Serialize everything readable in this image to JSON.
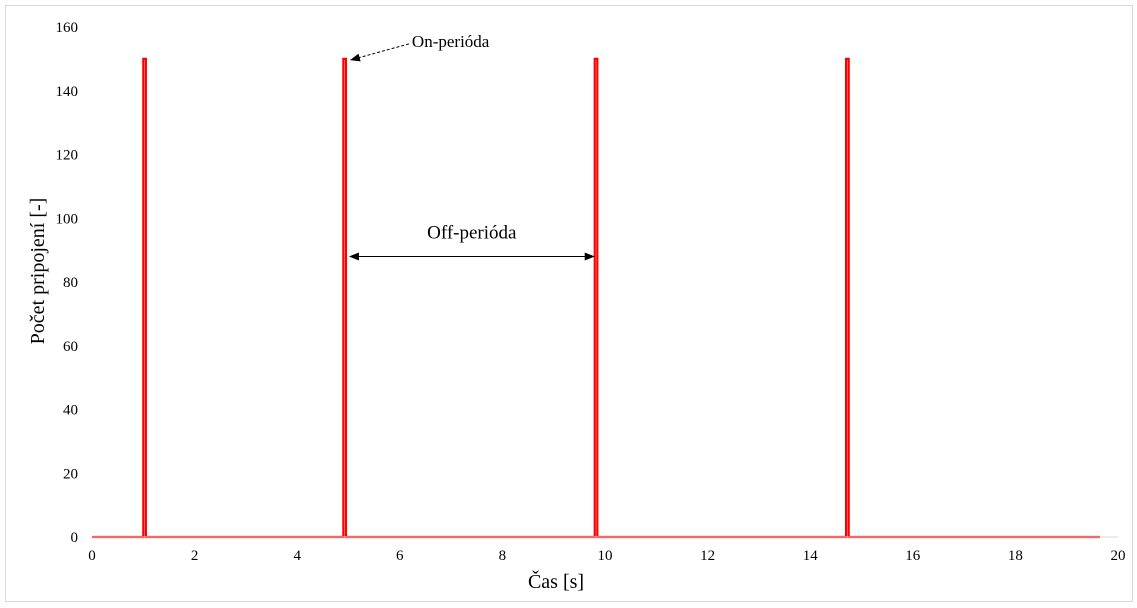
{
  "chart_data": {
    "type": "line",
    "title": "",
    "xlabel": "Čas [s]",
    "ylabel": "Počet pripojení [-]",
    "xlim": [
      0,
      20
    ],
    "ylim": [
      0,
      160
    ],
    "xticks": [
      0,
      2,
      4,
      6,
      8,
      10,
      12,
      14,
      16,
      18,
      20
    ],
    "yticks": [
      0,
      20,
      40,
      60,
      80,
      100,
      120,
      140,
      160
    ],
    "grid": false,
    "legend": "none",
    "line_color": "#ff0000",
    "series": [
      {
        "x": [
          0,
          1.0,
          1.0,
          1.05,
          1.05,
          4.9,
          4.9,
          4.95,
          4.95,
          9.8,
          9.8,
          9.85,
          9.85,
          14.7,
          14.7,
          14.75,
          14.75,
          19.65
        ],
        "y": [
          0,
          0,
          150,
          150,
          0,
          0,
          150,
          150,
          0,
          0,
          150,
          150,
          0,
          0,
          150,
          150,
          0,
          0
        ]
      }
    ],
    "annotations": [
      {
        "text": "On-perióda",
        "points_to": [
          4.95,
          150
        ]
      },
      {
        "text": "Off-perióda",
        "from": [
          4.95,
          88
        ],
        "to": [
          9.78,
          88
        ]
      }
    ]
  }
}
